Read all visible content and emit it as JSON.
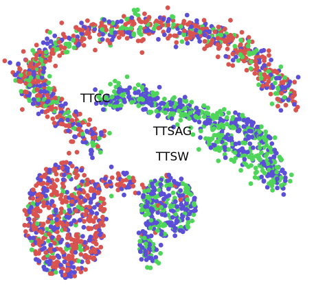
{
  "chart_data": {
    "type": "scatter",
    "title": "",
    "xlabel": "",
    "ylabel": "",
    "axes_visible": false,
    "grid": false,
    "legend": "none",
    "annotations": [
      {
        "text": "TTCC"
      },
      {
        "text": "TTSAG"
      },
      {
        "text": "TTSW"
      }
    ],
    "series": [
      {
        "color": "#d9534f"
      },
      {
        "color": "#5a4fd6"
      },
      {
        "color": "#4fd65a"
      }
    ],
    "clusters": [
      {
        "id": "upper-arc",
        "composition": {
          "red": 0.5,
          "blue": 0.3,
          "green": 0.2
        }
      },
      {
        "id": "right-arm",
        "composition": {
          "red": 0.0,
          "blue": 0.5,
          "green": 0.5
        }
      },
      {
        "id": "lower-left",
        "composition": {
          "red": 0.55,
          "blue": 0.35,
          "green": 0.1
        }
      },
      {
        "id": "lower-middle",
        "composition": {
          "red": 0.05,
          "blue": 0.55,
          "green": 0.4
        }
      }
    ]
  }
}
